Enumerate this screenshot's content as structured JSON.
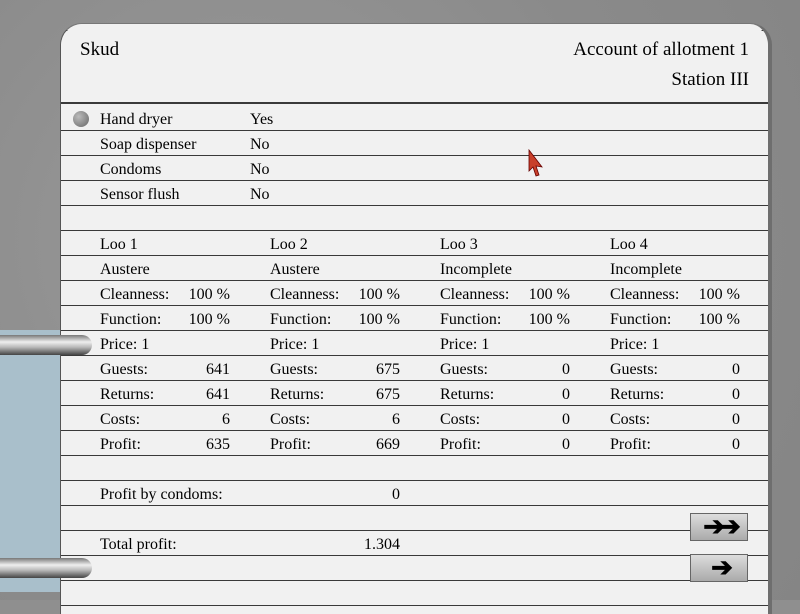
{
  "header": {
    "name": "Skud",
    "title": "Account of allotment 1",
    "station": "Station III"
  },
  "features": [
    {
      "label": "Hand dryer",
      "value": "Yes"
    },
    {
      "label": "Soap dispenser",
      "value": "No"
    },
    {
      "label": "Condoms",
      "value": "No"
    },
    {
      "label": "Sensor flush",
      "value": "No"
    }
  ],
  "labels": {
    "cleanness": "Cleanness:",
    "function": "Function:",
    "guests": "Guests:",
    "returns": "Returns:",
    "costs": "Costs:",
    "profit": "Profit:"
  },
  "loos": [
    {
      "name": "Loo 1",
      "type": "Austere",
      "cleanness": "100 %",
      "function": "100 %",
      "price": "Price: 1",
      "guests": "641",
      "returns": "641",
      "costs": "6",
      "profit": "635"
    },
    {
      "name": "Loo 2",
      "type": "Austere",
      "cleanness": "100 %",
      "function": "100 %",
      "price": "Price: 1",
      "guests": "675",
      "returns": "675",
      "costs": "6",
      "profit": "669"
    },
    {
      "name": "Loo 3",
      "type": "Incomplete",
      "cleanness": "100 %",
      "function": "100 %",
      "price": "Price: 1",
      "guests": "0",
      "returns": "0",
      "costs": "0",
      "profit": "0"
    },
    {
      "name": "Loo 4",
      "type": "Incomplete",
      "cleanness": "100 %",
      "function": "100 %",
      "price": "Price: 1",
      "guests": "0",
      "returns": "0",
      "costs": "0",
      "profit": "0"
    }
  ],
  "summary": {
    "condoms_label": "Profit by condoms:",
    "condoms_value": "0",
    "total_label": "Total profit:",
    "total_value": "1.304"
  },
  "buttons": {
    "fast_forward": "➔➔",
    "next": "➔"
  }
}
